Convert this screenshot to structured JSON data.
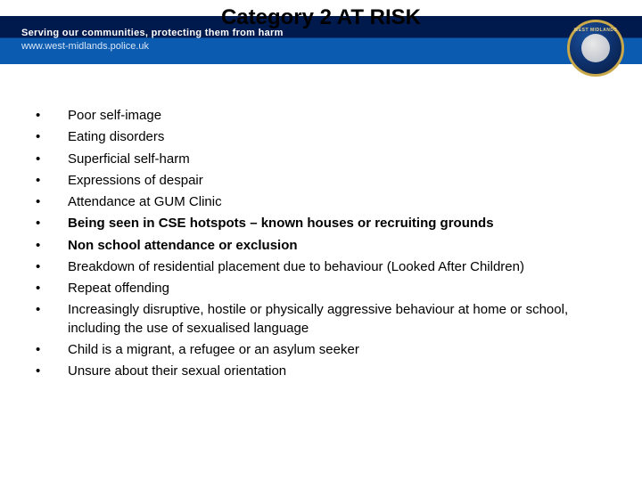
{
  "title": "Category 2  AT RISK",
  "header": {
    "tagline": "Serving our communities, protecting them from harm",
    "url": "www.west-midlands.police.uk",
    "badge_label": "WEST MIDLANDS"
  },
  "colors": {
    "header_dark": "#001a4d",
    "header_blue": "#0b5bb0",
    "badge_border": "#c9a84a",
    "text": "#000000",
    "background": "#ffffff"
  },
  "bullets": [
    {
      "text": "Poor self-image",
      "bold": false
    },
    {
      "text": "Eating disorders",
      "bold": false
    },
    {
      "text": "Superficial self-harm",
      "bold": false
    },
    {
      "text": "Expressions of despair",
      "bold": false
    },
    {
      "text": "Attendance at GUM Clinic",
      "bold": false
    },
    {
      "text": "Being seen in CSE hotspots – known houses or recruiting grounds",
      "bold": true
    },
    {
      "text": "Non school attendance or exclusion",
      "bold": true
    },
    {
      "text": "Breakdown of residential placement due to behaviour (Looked After Children)",
      "bold": false
    },
    {
      "text": "Repeat offending",
      "bold": false
    },
    {
      "text": "Increasingly disruptive, hostile or physically aggressive behaviour at home or school, including the use of sexualised language",
      "bold": false
    },
    {
      "text": "Child is a migrant, a refugee or an asylum seeker",
      "bold": false
    },
    {
      "text": "Unsure about their sexual orientation",
      "bold": false
    }
  ]
}
